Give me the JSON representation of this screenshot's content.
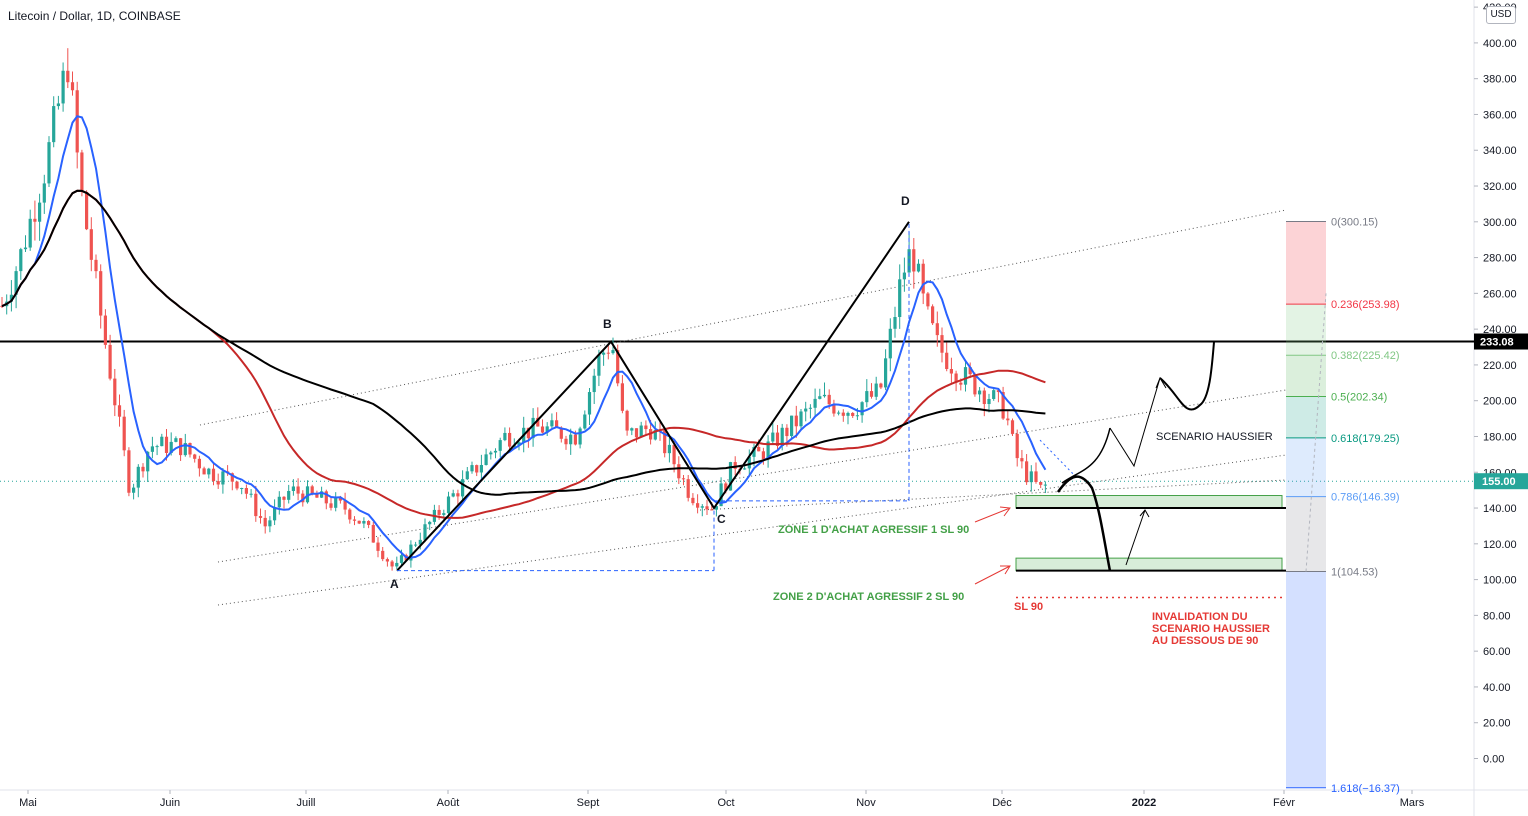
{
  "header": {
    "symbol_title": "Litecoin / Dollar, 1D, COINBASE",
    "currency_badge": "USD"
  },
  "price_axis": {
    "ticks": [
      "420.00",
      "400.00",
      "380.00",
      "360.00",
      "340.00",
      "320.00",
      "300.00",
      "280.00",
      "260.00",
      "240.00",
      "220.00",
      "200.00",
      "180.00",
      "160.00",
      "140.00",
      "120.00",
      "100.00",
      "80.00",
      "60.00",
      "40.00",
      "20.00",
      "0.00"
    ],
    "resistance_tag": "233.08",
    "last_price_tag": "155.00"
  },
  "time_axis": {
    "labels": [
      "Mai",
      "Juin",
      "Juill",
      "Août",
      "Sept",
      "Oct",
      "Nov",
      "Déc",
      "2022",
      "Févr",
      "Mars"
    ]
  },
  "fib_levels": [
    {
      "label": "0(300.15)",
      "value": 300.15,
      "color": "#787b86"
    },
    {
      "label": "0.236(253.98)",
      "value": 253.98,
      "color": "#f23645"
    },
    {
      "label": "0.382(225.42)",
      "value": 225.42,
      "color": "#81c784"
    },
    {
      "label": "0.5(202.34)",
      "value": 202.34,
      "color": "#4caf50"
    },
    {
      "label": "0.618(179.25)",
      "value": 179.25,
      "color": "#089981"
    },
    {
      "label": "0.786(146.39)",
      "value": 146.39,
      "color": "#5b9cf6"
    },
    {
      "label": "1(104.53)",
      "value": 104.53,
      "color": "#787b86"
    },
    {
      "label": "1.618(−16.37)",
      "value": -16.37,
      "color": "#2962ff"
    }
  ],
  "pattern_points": {
    "A": "A",
    "B": "B",
    "C": "C",
    "D": "D"
  },
  "annotations": {
    "zone1": "ZONE 1 D'ACHAT AGRESSIF 1 SL 90",
    "zone2": "ZONE 2 D'ACHAT AGRESSIF 2 SL 90",
    "scenario": "SCENARIO HAUSSIER",
    "stop_loss": "SL 90",
    "invalidation_line1": "INVALIDATION DU",
    "invalidation_line2": "SCENARIO HAUSSIER",
    "invalidation_line3": "AU DESSOUS DE 90"
  },
  "colors": {
    "up": "#26a69a",
    "down": "#ef5350",
    "ma_fast": "#2962ff",
    "ma_mid": "#c62828",
    "ma_slow": "#000000",
    "zone_fill": "#c8e6c9",
    "zone_stroke": "#43a047",
    "annotation_green": "#43a047",
    "annotation_red": "#e53935"
  },
  "chart_data": {
    "type": "candlestick",
    "title": "Litecoin / Dollar, 1D, COINBASE",
    "y_range": [
      -20,
      420
    ],
    "resistance": 233.08,
    "last_price": 155.0,
    "abcd": {
      "A": 105,
      "B": 233,
      "C": 140,
      "D": 300
    },
    "close_path": [
      {
        "t": "Mai",
        "v": 250
      },
      {
        "t": "mi-Mai",
        "v": 390
      },
      {
        "t": "fin Mai",
        "v": 200
      },
      {
        "t": "Juin",
        "v": 175
      },
      {
        "t": "Juill",
        "v": 135
      },
      {
        "t": "fin Juill",
        "v": 105
      },
      {
        "t": "Août",
        "v": 150
      },
      {
        "t": "Sept",
        "v": 233
      },
      {
        "t": "fin Sept",
        "v": 140
      },
      {
        "t": "Oct",
        "v": 165
      },
      {
        "t": "Nov",
        "v": 300
      },
      {
        "t": "mi-Nov",
        "v": 225
      },
      {
        "t": "Déc",
        "v": 165
      },
      {
        "t": "mi-Déc",
        "v": 155
      }
    ],
    "zones": [
      {
        "name": "ZONE 1",
        "low": 140,
        "high": 147
      },
      {
        "name": "ZONE 2",
        "low": 105,
        "high": 112
      }
    ],
    "stop_loss": 90
  }
}
